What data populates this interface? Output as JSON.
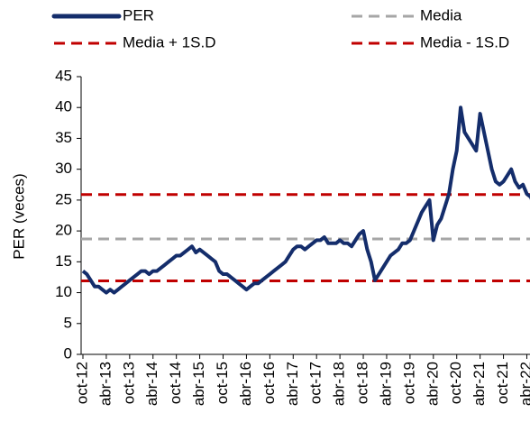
{
  "chart_data": {
    "type": "line",
    "ylabel": "PER (veces)",
    "ylim": [
      0,
      45
    ],
    "yticks": [
      0,
      5,
      10,
      15,
      20,
      25,
      30,
      35,
      40,
      45
    ],
    "categories": [
      "oct-12",
      null,
      null,
      null,
      null,
      null,
      "abr-13",
      null,
      null,
      null,
      null,
      null,
      "oct-13",
      null,
      null,
      null,
      null,
      null,
      "abr-14",
      null,
      null,
      null,
      null,
      null,
      "oct-14",
      null,
      null,
      null,
      null,
      null,
      "abr-15",
      null,
      null,
      null,
      null,
      null,
      "oct-15",
      null,
      null,
      null,
      null,
      null,
      "abr-16",
      null,
      null,
      null,
      null,
      null,
      "oct-16",
      null,
      null,
      null,
      null,
      null,
      "abr-17",
      null,
      null,
      null,
      null,
      null,
      "oct-17",
      null,
      null,
      null,
      null,
      null,
      "abr-18",
      null,
      null,
      null,
      null,
      null,
      "oct-18",
      null,
      null,
      null,
      null,
      null,
      "abr-19",
      null,
      null,
      null,
      null,
      null,
      "oct-19",
      null,
      null,
      null,
      null,
      null,
      "abr-20",
      null,
      null,
      null,
      null,
      null,
      "oct-20",
      null,
      null,
      null,
      null,
      null,
      "abr-21",
      null,
      null,
      null,
      null,
      null,
      "oct-21",
      null,
      null,
      null,
      null,
      null,
      "abr-22",
      null,
      null
    ],
    "series": [
      {
        "name": "PER",
        "color": "#142d6b",
        "values": [
          13.5,
          13,
          12,
          11,
          11,
          10.5,
          10,
          10.5,
          10,
          10.5,
          11,
          11.5,
          12,
          12.5,
          13,
          13.5,
          13.5,
          13,
          13.5,
          13.5,
          14,
          14.5,
          15,
          15.5,
          16,
          16,
          16.5,
          17,
          17.5,
          16.5,
          17,
          16.5,
          16,
          15.5,
          15,
          13.5,
          13,
          13,
          12.5,
          12,
          11.5,
          11,
          10.5,
          11,
          11.5,
          11.5,
          12,
          12.5,
          13,
          13.5,
          14,
          14.5,
          15,
          16,
          17,
          17.5,
          17.5,
          17,
          17.5,
          18,
          18.5,
          18.5,
          19,
          18,
          18,
          18,
          18.5,
          18,
          18,
          17.5,
          18.5,
          19.5,
          20,
          17,
          15,
          12,
          13,
          14,
          15,
          16,
          16.5,
          17,
          18,
          18,
          18.5,
          20,
          21.5,
          23,
          24,
          25,
          18.5,
          21,
          22,
          24,
          26,
          30,
          33,
          40,
          36,
          35,
          34,
          33,
          39,
          36,
          33,
          30,
          28,
          27.5,
          28,
          29,
          30,
          28,
          27,
          27.5,
          26,
          25.5,
          24
        ]
      }
    ],
    "reference_lines": [
      {
        "name": "Media",
        "value": 18.7,
        "color": "#a6a6a6"
      },
      {
        "name": "Media + 1S.D",
        "value": 25.9,
        "color": "#c00000"
      },
      {
        "name": "Media - 1S.D",
        "value": 11.9,
        "color": "#c00000"
      }
    ]
  }
}
